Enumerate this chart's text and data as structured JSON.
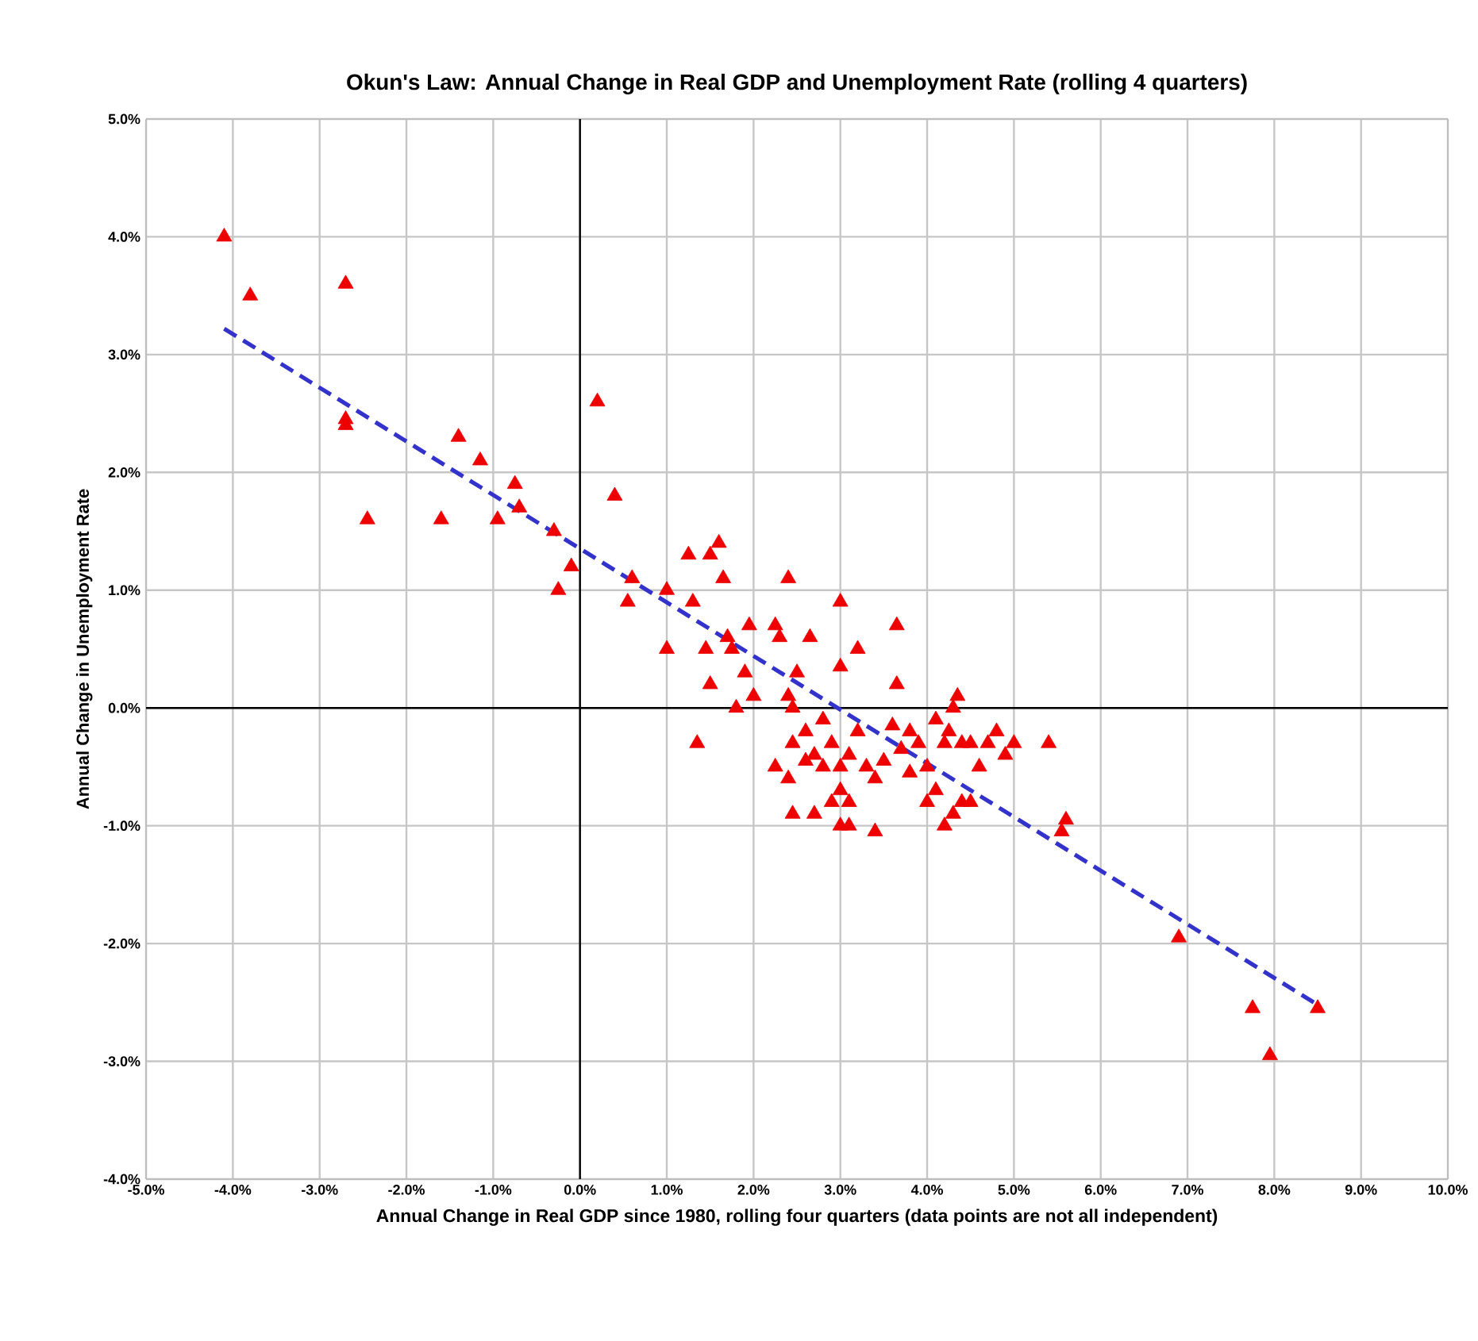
{
  "chart_data": {
    "type": "scatter",
    "title": "Okun's Law: Annual Change in Real GDP and Unemployment Rate (rolling 4 quarters)",
    "xlabel": "Annual Change in Real GDP  since 1980,  rolling four quarters (data points are not all independent)",
    "ylabel": "Annual Change in Unemployment Rate",
    "xlim": [
      -5,
      10
    ],
    "ylim": [
      -4,
      5
    ],
    "xticks": [
      {
        "value": -5,
        "label": "-5.0%"
      },
      {
        "value": -4,
        "label": "-4.0%"
      },
      {
        "value": -3,
        "label": "-3.0%"
      },
      {
        "value": -2,
        "label": "-2.0%"
      },
      {
        "value": -1,
        "label": "-1.0%"
      },
      {
        "value": 0,
        "label": "0.0%"
      },
      {
        "value": 1,
        "label": "1.0%"
      },
      {
        "value": 2,
        "label": "2.0%"
      },
      {
        "value": 3,
        "label": "3.0%"
      },
      {
        "value": 4,
        "label": "4.0%"
      },
      {
        "value": 5,
        "label": "5.0%"
      },
      {
        "value": 6,
        "label": "6.0%"
      },
      {
        "value": 7,
        "label": "7.0%"
      },
      {
        "value": 8,
        "label": "8.0%"
      },
      {
        "value": 9,
        "label": "9.0%"
      },
      {
        "value": 10,
        "label": "10.0%"
      }
    ],
    "yticks": [
      {
        "value": -4,
        "label": "-4.0%"
      },
      {
        "value": -3,
        "label": "-3.0%"
      },
      {
        "value": -2,
        "label": "-2.0%"
      },
      {
        "value": -1,
        "label": "-1.0%"
      },
      {
        "value": 0,
        "label": "0.0%"
      },
      {
        "value": 1,
        "label": "1.0%"
      },
      {
        "value": 2,
        "label": "2.0%"
      },
      {
        "value": 3,
        "label": "3.0%"
      },
      {
        "value": 4,
        "label": "4.0%"
      },
      {
        "value": 5,
        "label": "5.0%"
      }
    ],
    "grid": true,
    "marker": "triangle",
    "series": [
      {
        "color": "#ee0000",
        "x": [
          -4.1,
          -3.8,
          -2.7,
          -2.7,
          -2.7,
          -2.45,
          -1.6,
          -1.4,
          -1.15,
          -0.75,
          -0.95,
          -0.7,
          -0.3,
          -0.25,
          -0.1,
          0.2,
          0.4,
          0.6,
          0.55,
          1.0,
          1.0,
          1.25,
          1.3,
          1.5,
          1.6,
          1.65,
          1.35,
          1.45,
          1.5,
          1.7,
          1.75,
          1.95,
          1.9,
          1.8,
          2.0,
          2.25,
          2.3,
          2.4,
          2.25,
          2.4,
          2.45,
          2.7,
          2.65,
          3.0,
          3.2,
          3.0,
          3.65,
          3.65,
          2.5,
          2.4,
          2.45,
          2.45,
          2.8,
          2.9,
          3.0,
          3.1,
          2.8,
          3.0,
          3.1,
          2.9,
          3.0,
          3.1,
          3.4,
          3.2,
          3.3,
          3.4,
          3.5,
          3.6,
          3.7,
          3.8,
          3.9,
          4.0,
          4.1,
          4.1,
          4.2,
          4.25,
          4.3,
          4.35,
          4.4,
          4.5,
          4.6,
          4.4,
          4.3,
          4.2,
          4.5,
          4.7,
          4.8,
          4.9,
          5.0,
          5.4,
          5.6,
          5.55,
          6.9,
          7.75,
          7.95,
          8.5,
          2.6,
          2.7,
          2.6,
          3.8,
          4.0
        ],
        "values": [
          4.0,
          3.5,
          3.6,
          2.45,
          2.4,
          1.6,
          1.6,
          2.3,
          2.1,
          1.9,
          1.6,
          1.7,
          1.5,
          1.0,
          1.2,
          2.6,
          1.8,
          1.1,
          0.9,
          1.0,
          0.5,
          1.3,
          0.9,
          1.3,
          1.4,
          1.1,
          -0.3,
          0.5,
          0.2,
          0.6,
          0.5,
          0.7,
          0.3,
          0.0,
          0.1,
          0.7,
          0.6,
          1.1,
          -0.5,
          -0.6,
          -0.9,
          -0.9,
          0.6,
          0.9,
          0.5,
          0.35,
          0.7,
          0.2,
          0.3,
          0.1,
          0.0,
          -0.3,
          -0.1,
          -0.3,
          -0.5,
          -0.4,
          -0.5,
          -0.7,
          -0.8,
          -0.8,
          -1.0,
          -1.0,
          -1.05,
          -0.2,
          -0.5,
          -0.6,
          -0.45,
          -0.15,
          -0.35,
          -0.2,
          -0.3,
          -0.5,
          -0.7,
          -0.1,
          -0.3,
          -0.2,
          0.0,
          0.1,
          -0.3,
          -0.3,
          -0.5,
          -0.8,
          -0.9,
          -1.0,
          -0.8,
          -0.3,
          -0.2,
          -0.4,
          -0.3,
          -0.3,
          -0.95,
          -1.05,
          -1.95,
          -2.55,
          -2.95,
          -2.55,
          -0.45,
          -0.4,
          -0.2,
          -0.55,
          -0.8
        ]
      },
      {
        "type": "line",
        "color": "#3333cc",
        "line_style": "dashed",
        "marker": "none",
        "x": [
          -4.1,
          8.5
        ],
        "values": [
          3.22,
          -2.52
        ]
      }
    ]
  }
}
